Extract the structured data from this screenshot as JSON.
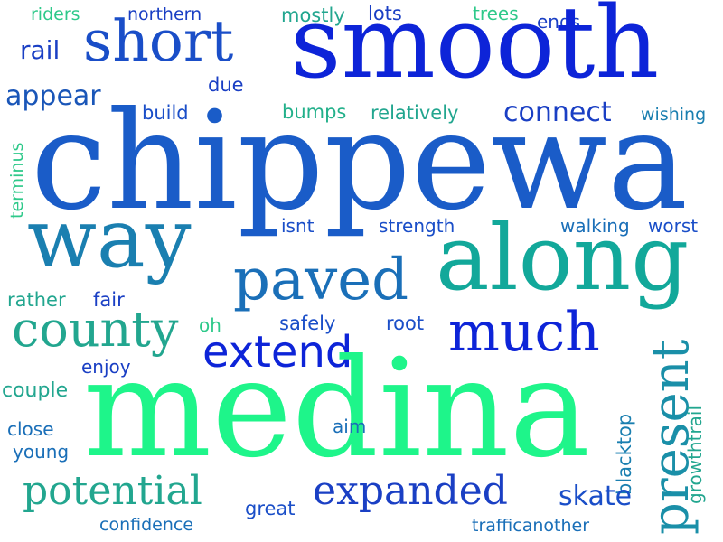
{
  "words": [
    {
      "key": "riders",
      "text": "riders",
      "color": "#2ec98a"
    },
    {
      "key": "northern",
      "text": "northern",
      "color": "#1a3fc4"
    },
    {
      "key": "mostly",
      "text": "mostly",
      "color": "#22a68f"
    },
    {
      "key": "lots",
      "text": "lots",
      "color": "#1a3fc4"
    },
    {
      "key": "trees",
      "text": "trees",
      "color": "#2ec98a"
    },
    {
      "key": "ends",
      "text": "ends",
      "color": "#1a3fc4"
    },
    {
      "key": "rail",
      "text": "rail",
      "color": "#1a3fc4"
    },
    {
      "key": "short",
      "text": "short",
      "color": "#1a4ec8"
    },
    {
      "key": "smooth",
      "text": "smooth",
      "color": "#0d24d8"
    },
    {
      "key": "appear",
      "text": "appear",
      "color": "#1a56b8"
    },
    {
      "key": "due",
      "text": "due",
      "color": "#1a3fc4"
    },
    {
      "key": "build",
      "text": "build",
      "color": "#1a4ec8"
    },
    {
      "key": "bumps",
      "text": "bumps",
      "color": "#22b08a"
    },
    {
      "key": "relatively",
      "text": "relatively",
      "color": "#22a68f"
    },
    {
      "key": "connect",
      "text": "connect",
      "color": "#1a3fc4"
    },
    {
      "key": "wishing",
      "text": "wishing",
      "color": "#1a7fb0"
    },
    {
      "key": "terminus",
      "text": "terminus",
      "color": "#2ec98a"
    },
    {
      "key": "chippewa",
      "text": "chippewa",
      "color": "#1a5cc8"
    },
    {
      "key": "isnt",
      "text": "isnt",
      "color": "#1a4ec8"
    },
    {
      "key": "strength",
      "text": "strength",
      "color": "#1a4ec8"
    },
    {
      "key": "walking",
      "text": "walking",
      "color": "#1a6fb8"
    },
    {
      "key": "worst",
      "text": "worst",
      "color": "#1a4ec8"
    },
    {
      "key": "way",
      "text": "way",
      "color": "#1a7fb0"
    },
    {
      "key": "along",
      "text": "along",
      "color": "#12a89a"
    },
    {
      "key": "paved",
      "text": "paved",
      "color": "#1a6fb8"
    },
    {
      "key": "rather",
      "text": "rather",
      "color": "#22a68f"
    },
    {
      "key": "fair",
      "text": "fair",
      "color": "#1a3fc4"
    },
    {
      "key": "county",
      "text": "county",
      "color": "#22a68f"
    },
    {
      "key": "oh",
      "text": "oh",
      "color": "#2ec98a"
    },
    {
      "key": "safely",
      "text": "safely",
      "color": "#1a4ec8"
    },
    {
      "key": "root",
      "text": "root",
      "color": "#1a4ec8"
    },
    {
      "key": "much",
      "text": "much",
      "color": "#0d24d8"
    },
    {
      "key": "extend",
      "text": "extend",
      "color": "#0d24d8"
    },
    {
      "key": "present",
      "text": "present",
      "color": "#1a8fa8"
    },
    {
      "key": "enjoy",
      "text": "enjoy",
      "color": "#1a3fc4"
    },
    {
      "key": "blacktop",
      "text": "blacktop",
      "color": "#1a7fb0"
    },
    {
      "key": "couple",
      "text": "couple",
      "color": "#22a68f"
    },
    {
      "key": "medina",
      "text": "medina",
      "color": "#1ef58a"
    },
    {
      "key": "growthtrail",
      "text": "growthtrail",
      "color": "#22a68f"
    },
    {
      "key": "close",
      "text": "close",
      "color": "#1a6fb8"
    },
    {
      "key": "aim",
      "text": "aim",
      "color": "#1a6fb8"
    },
    {
      "key": "young",
      "text": "young",
      "color": "#1a6fb8"
    },
    {
      "key": "potential",
      "text": "potential",
      "color": "#22a68f"
    },
    {
      "key": "expanded",
      "text": "expanded",
      "color": "#1a3fc4"
    },
    {
      "key": "skate",
      "text": "skate",
      "color": "#1a4ec8"
    },
    {
      "key": "great",
      "text": "great",
      "color": "#1a4ec8"
    },
    {
      "key": "confidence",
      "text": "confidence",
      "color": "#1a6fb8"
    },
    {
      "key": "trafficanother",
      "text": "trafficanother",
      "color": "#1a6fb8"
    }
  ]
}
